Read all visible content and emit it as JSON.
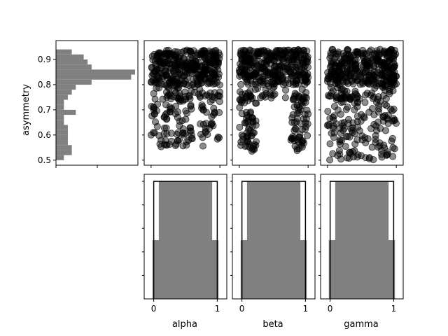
{
  "chart_data": [
    {
      "type": "bar",
      "orientation": "horizontal",
      "ylabel": "asymmetry",
      "ylim": [
        0.48,
        0.975
      ],
      "yticks": [
        0.5,
        0.6,
        0.7,
        0.8,
        0.9
      ],
      "ytick_labels": [
        "0.5",
        "0.6",
        "0.7",
        "0.8",
        "0.9"
      ],
      "bins": [
        0.51,
        0.53,
        0.55,
        0.57,
        0.59,
        0.61,
        0.63,
        0.65,
        0.67,
        0.69,
        0.71,
        0.73,
        0.75,
        0.77,
        0.79,
        0.81,
        0.83,
        0.85,
        0.87,
        0.89,
        0.91,
        0.93,
        0.95
      ],
      "values": [
        1,
        2,
        2,
        1.5,
        1.5,
        1.5,
        1.5,
        1,
        1,
        2.5,
        1,
        1,
        1.5,
        2,
        2.5,
        4.5,
        9.5,
        10,
        4.5,
        4,
        3.5,
        2,
        0
      ]
    },
    {
      "type": "scatter",
      "panels": [
        {
          "xlabel": "alpha",
          "xlim": [
            -0.1,
            1.1
          ],
          "ylim": [
            0.48,
            0.975
          ]
        },
        {
          "xlabel": "beta",
          "xlim": [
            -0.1,
            1.1
          ],
          "ylim": [
            0.48,
            0.975
          ]
        },
        {
          "xlabel": "gamma",
          "xlim": [
            -0.1,
            1.1
          ],
          "ylim": [
            0.48,
            0.975
          ]
        }
      ]
    },
    {
      "type": "bar",
      "panels": [
        {
          "xlabel": "alpha",
          "xticks": [
            0,
            1
          ],
          "xtick_labels": [
            "0",
            "1"
          ],
          "xlim": [
            -0.15,
            1.15
          ],
          "density": [
            0.5,
            1,
            1,
            1,
            1,
            1,
            1,
            1,
            1,
            0.5
          ]
        },
        {
          "xlabel": "beta",
          "xticks": [
            0,
            1
          ],
          "xtick_labels": [
            "0",
            "1"
          ],
          "xlim": [
            -0.15,
            1.15
          ],
          "density": [
            0.5,
            1,
            1,
            1,
            1,
            1,
            1,
            1,
            1,
            0.5
          ]
        },
        {
          "xlabel": "gamma",
          "xticks": [
            0,
            1
          ],
          "xtick_labels": [
            "0",
            "1"
          ],
          "xlim": [
            -0.15,
            1.15
          ],
          "density": [
            0.5,
            1,
            1,
            1,
            1,
            1,
            1,
            1,
            1,
            0.5
          ]
        }
      ],
      "prior_line_value": 1
    }
  ]
}
